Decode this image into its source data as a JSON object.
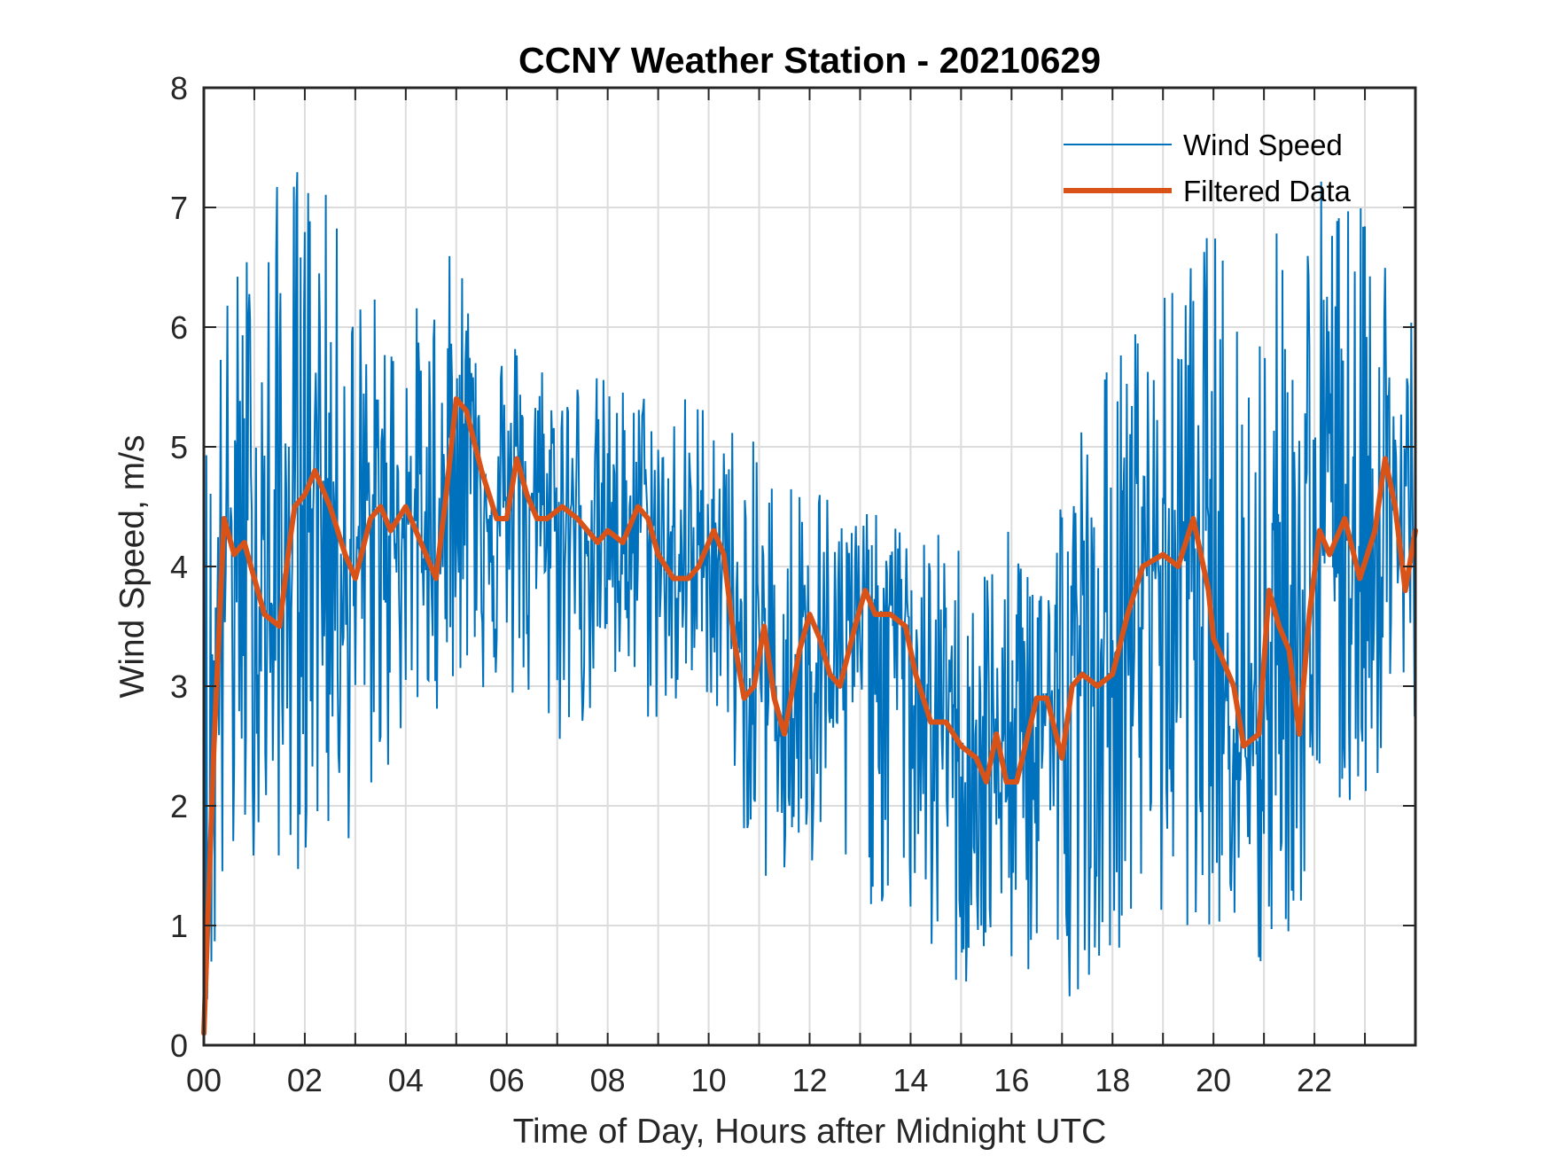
{
  "chart_data": {
    "type": "line",
    "title": "CCNY Weather Station - 20210629",
    "xlabel": "Time of Day, Hours after Midnight UTC",
    "ylabel": "Wind Speed, m/s",
    "xlim": [
      0,
      24
    ],
    "ylim": [
      0,
      8
    ],
    "grid": true,
    "x_minor_grid_step_hours": 1,
    "x_ticks": [
      0,
      2,
      4,
      6,
      8,
      10,
      12,
      14,
      16,
      18,
      20,
      22
    ],
    "x_tick_labels": [
      "00",
      "02",
      "04",
      "06",
      "08",
      "10",
      "12",
      "14",
      "16",
      "18",
      "20",
      "22"
    ],
    "y_ticks": [
      0,
      1,
      2,
      3,
      4,
      5,
      6,
      7,
      8
    ],
    "y_tick_labels": [
      "0",
      "1",
      "2",
      "3",
      "4",
      "5",
      "6",
      "7",
      "8"
    ],
    "legend": {
      "placement": "top-right",
      "entries": [
        "Wind Speed",
        "Filtered Data"
      ]
    },
    "series": [
      {
        "name": "Wind Speed",
        "color": "#0072BD",
        "style": "thin-noisy",
        "description": "High-frequency raw samples oscillating roughly ±1.5 m/s around the filtered trend; extremes from ~0.3 to ~7.6 m/s",
        "envelope": {
          "x": [
            0,
            1,
            2,
            3,
            4,
            5,
            6,
            7,
            8,
            9,
            10,
            11,
            12,
            13,
            14,
            15,
            16,
            17,
            18,
            19,
            20,
            21,
            22,
            23,
            24
          ],
          "max": [
            5.8,
            7.0,
            7.6,
            6.5,
            6.1,
            6.7,
            6.0,
            5.8,
            5.6,
            5.5,
            5.5,
            5.0,
            4.9,
            4.5,
            4.3,
            4.3,
            4.3,
            5.0,
            5.9,
            6.3,
            6.9,
            6.7,
            7.5,
            7.0,
            6.5
          ],
          "min": [
            0.1,
            1.6,
            1.4,
            1.7,
            2.5,
            3.0,
            2.8,
            2.4,
            2.8,
            2.6,
            2.9,
            1.3,
            1.2,
            1.2,
            0.9,
            0.3,
            0.6,
            0.3,
            0.8,
            0.9,
            1.0,
            0.3,
            1.4,
            2.0,
            2.7
          ]
        }
      },
      {
        "name": "Filtered Data",
        "color": "#D95319",
        "style": "thick",
        "x": [
          0.0,
          0.2,
          0.4,
          0.6,
          0.8,
          1.0,
          1.2,
          1.5,
          1.7,
          1.8,
          2.0,
          2.2,
          2.5,
          2.8,
          3.0,
          3.3,
          3.5,
          3.7,
          4.0,
          4.2,
          4.5,
          4.6,
          4.8,
          5.0,
          5.2,
          5.5,
          5.8,
          6.0,
          6.2,
          6.4,
          6.6,
          6.8,
          7.1,
          7.4,
          7.8,
          8.0,
          8.3,
          8.6,
          8.8,
          9.0,
          9.3,
          9.6,
          9.8,
          10.1,
          10.3,
          10.5,
          10.7,
          10.9,
          11.1,
          11.3,
          11.5,
          11.8,
          12.0,
          12.2,
          12.4,
          12.6,
          12.9,
          13.1,
          13.3,
          13.6,
          13.9,
          14.1,
          14.4,
          14.7,
          15.0,
          15.3,
          15.5,
          15.7,
          15.9,
          16.1,
          16.5,
          16.7,
          17.0,
          17.2,
          17.4,
          17.7,
          18.0,
          18.3,
          18.6,
          19.0,
          19.3,
          19.6,
          19.9,
          20.0,
          20.4,
          20.6,
          20.9,
          21.1,
          21.3,
          21.5,
          21.7,
          21.9,
          22.1,
          22.3,
          22.6,
          22.9,
          23.2,
          23.4,
          23.6,
          23.8,
          24.0
        ],
        "y": [
          0.1,
          2.5,
          4.4,
          4.1,
          4.2,
          3.9,
          3.6,
          3.5,
          4.2,
          4.5,
          4.6,
          4.8,
          4.5,
          4.1,
          3.9,
          4.4,
          4.5,
          4.3,
          4.5,
          4.3,
          4.0,
          3.9,
          4.6,
          5.4,
          5.3,
          4.8,
          4.4,
          4.4,
          4.9,
          4.6,
          4.4,
          4.4,
          4.5,
          4.4,
          4.2,
          4.3,
          4.2,
          4.5,
          4.4,
          4.1,
          3.9,
          3.9,
          4.0,
          4.3,
          4.1,
          3.4,
          2.9,
          3.0,
          3.5,
          2.9,
          2.6,
          3.3,
          3.6,
          3.4,
          3.1,
          3.0,
          3.5,
          3.8,
          3.6,
          3.6,
          3.5,
          3.1,
          2.7,
          2.7,
          2.5,
          2.4,
          2.2,
          2.6,
          2.2,
          2.2,
          2.9,
          2.9,
          2.4,
          3.0,
          3.1,
          3.0,
          3.1,
          3.6,
          4.0,
          4.1,
          4.0,
          4.4,
          3.8,
          3.4,
          3.0,
          2.5,
          2.6,
          3.8,
          3.5,
          3.3,
          2.6,
          3.6,
          4.3,
          4.1,
          4.4,
          3.9,
          4.3,
          4.9,
          4.5,
          3.8,
          4.3
        ]
      }
    ]
  }
}
